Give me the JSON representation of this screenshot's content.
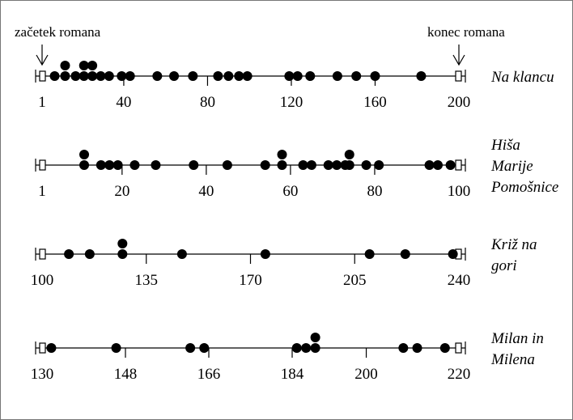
{
  "markers": {
    "start": "začetek romana",
    "end": "konec romana"
  },
  "chart_data": [
    {
      "type": "scatter",
      "title": [
        "Na klancu"
      ],
      "xlim": [
        1,
        200
      ],
      "ticks": [
        1,
        40,
        80,
        120,
        160,
        200
      ],
      "points": [
        [
          7,
          0
        ],
        [
          12,
          0
        ],
        [
          12,
          1
        ],
        [
          17,
          0
        ],
        [
          21,
          0
        ],
        [
          21,
          1
        ],
        [
          25,
          0
        ],
        [
          25,
          1
        ],
        [
          29,
          0
        ],
        [
          33,
          0
        ],
        [
          39,
          0
        ],
        [
          43,
          0
        ],
        [
          56,
          0
        ],
        [
          64,
          0
        ],
        [
          73,
          0
        ],
        [
          85,
          0
        ],
        [
          90,
          0
        ],
        [
          95,
          0
        ],
        [
          99,
          0
        ],
        [
          119,
          0
        ],
        [
          123,
          0
        ],
        [
          129,
          0
        ],
        [
          142,
          0
        ],
        [
          151,
          0
        ],
        [
          160,
          0
        ],
        [
          182,
          0
        ]
      ]
    },
    {
      "type": "scatter",
      "title": [
        "Hiša",
        "Marije",
        "Pomošnice"
      ],
      "xlim": [
        1,
        100
      ],
      "ticks": [
        1,
        20,
        40,
        60,
        80,
        100
      ],
      "points": [
        [
          11,
          0
        ],
        [
          11,
          1
        ],
        [
          15,
          0
        ],
        [
          17,
          0
        ],
        [
          19,
          0
        ],
        [
          23,
          0
        ],
        [
          28,
          0
        ],
        [
          37,
          0
        ],
        [
          45,
          0
        ],
        [
          54,
          0
        ],
        [
          58,
          0
        ],
        [
          58,
          1
        ],
        [
          63,
          0
        ],
        [
          65,
          0
        ],
        [
          69,
          0
        ],
        [
          71,
          0
        ],
        [
          73,
          0
        ],
        [
          74,
          0
        ],
        [
          74,
          1
        ],
        [
          78,
          0
        ],
        [
          81,
          0
        ],
        [
          93,
          0
        ],
        [
          95,
          0
        ],
        [
          98,
          0
        ]
      ]
    },
    {
      "type": "scatter",
      "title": [
        "Križ na",
        "gori"
      ],
      "xlim": [
        100,
        240
      ],
      "ticks": [
        100,
        135,
        170,
        205,
        240
      ],
      "points": [
        [
          109,
          0
        ],
        [
          116,
          0
        ],
        [
          127,
          0
        ],
        [
          127,
          1
        ],
        [
          147,
          0
        ],
        [
          175,
          0
        ],
        [
          210,
          0
        ],
        [
          222,
          0
        ],
        [
          238,
          0
        ]
      ]
    },
    {
      "type": "scatter",
      "title": [
        "Milan in",
        "Milena"
      ],
      "xlim": [
        130,
        220
      ],
      "ticks": [
        130,
        148,
        166,
        184,
        200,
        220
      ],
      "points": [
        [
          132,
          0
        ],
        [
          146,
          0
        ],
        [
          162,
          0
        ],
        [
          165,
          0
        ],
        [
          185,
          0
        ],
        [
          187,
          0
        ],
        [
          189,
          0
        ],
        [
          189,
          1
        ],
        [
          208,
          0
        ],
        [
          211,
          0
        ],
        [
          217,
          0
        ]
      ]
    }
  ]
}
